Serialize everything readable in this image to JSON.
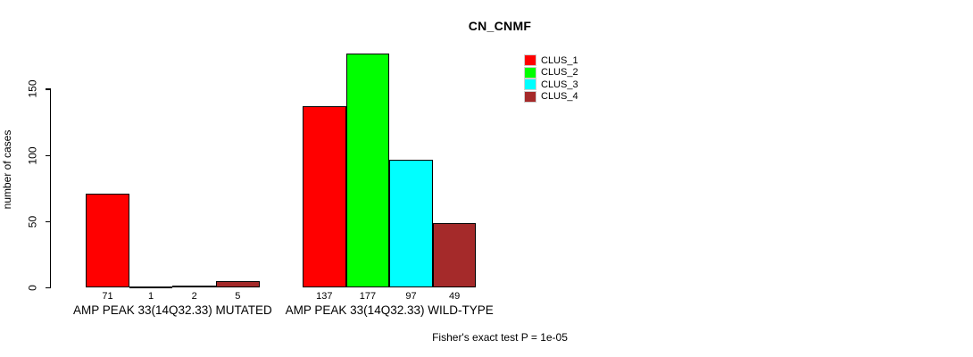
{
  "chart_data": {
    "type": "bar",
    "title": "CN_CNMF",
    "xlabel": "",
    "ylabel": "number of cases",
    "ylim": [
      0,
      180
    ],
    "yticks": [
      0,
      50,
      100,
      150
    ],
    "grid": false,
    "legend_position": "top-right-inside",
    "bar_value_labels_shown": true,
    "categories": [
      "AMP PEAK 33(14Q32.33) MUTATED",
      "AMP PEAK 33(14Q32.33) WILD-TYPE"
    ],
    "series": [
      {
        "name": "CLUS_1",
        "color": "#FF0000",
        "values": [
          71,
          137
        ]
      },
      {
        "name": "CLUS_2",
        "color": "#00FF00",
        "values": [
          1,
          177
        ]
      },
      {
        "name": "CLUS_3",
        "color": "#00FFFF",
        "values": [
          2,
          97
        ]
      },
      {
        "name": "CLUS_4",
        "color": "#A52A2A",
        "values": [
          5,
          49
        ]
      }
    ],
    "annotation": "Fisher's exact test P = 1e-05"
  }
}
